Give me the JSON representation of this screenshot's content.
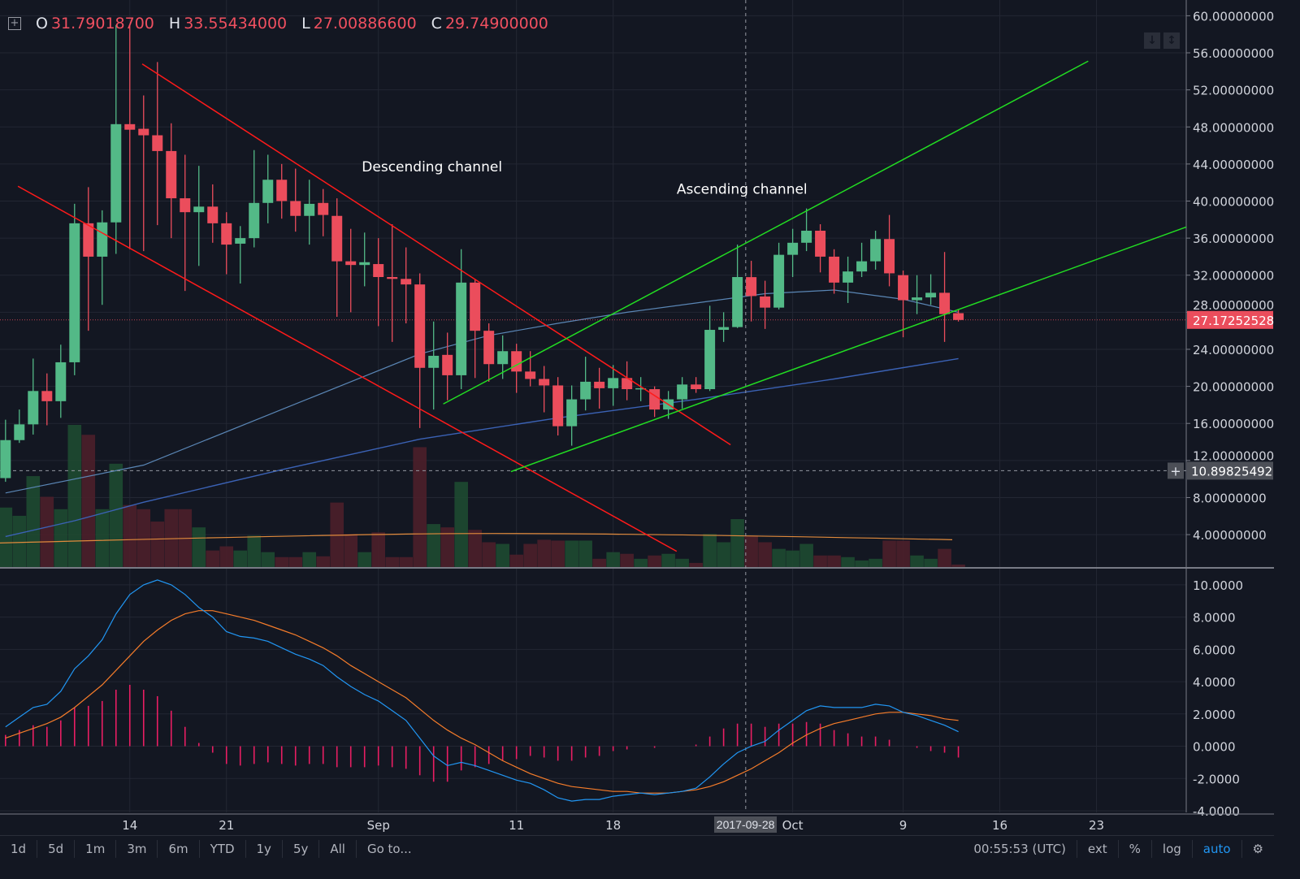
{
  "legend": {
    "o_label": "O",
    "o_value": "31.79018700",
    "h_label": "H",
    "h_value": "33.55434000",
    "l_label": "L",
    "l_value": "27.00886600",
    "c_label": "C",
    "c_value": "29.74900000"
  },
  "colors": {
    "background": "#131722",
    "grid": "#232733",
    "up": "#53b987",
    "down": "#eb4d5c",
    "up_volume": "#1e4a31",
    "down_volume": "#4d1f2a",
    "ma_fast": "#5a86b5",
    "ma_slow": "#3b62b5",
    "volume_ma": "#e08a3c",
    "macd": "#2196f3",
    "signal": "#f57c2a",
    "histogram": "#e91e63",
    "channel_desc": "#ff1a1a",
    "channel_asc": "#22dd22"
  },
  "toolbar": {
    "ranges": [
      "1d",
      "5d",
      "1m",
      "3m",
      "6m",
      "YTD",
      "1y",
      "5y",
      "All",
      "Go to..."
    ],
    "clock": "00:55:53 (UTC)",
    "options": [
      "ext",
      "%",
      "log",
      "auto"
    ],
    "settings_icon": "gear-icon"
  },
  "pane_buttons": {
    "scroll_down": "arrow-down-icon",
    "scale": "arrow-up-down-icon"
  },
  "crosshair": {
    "time_label": "2017-09-28",
    "price_label": "10.89825492"
  },
  "last_price_label": "27.17252528",
  "chart_data": {
    "type": "candlestick",
    "title": "",
    "start_date": "2017-08-05",
    "interval": "1d",
    "price_axis": {
      "ticks": [
        "60.00000000",
        "56.00000000",
        "52.00000000",
        "48.00000000",
        "44.00000000",
        "40.00000000",
        "36.00000000",
        "32.00000000",
        "28.00000000",
        "24.00000000",
        "20.00000000",
        "16.00000000",
        "12.00000000",
        "8.00000000",
        "4.00000000"
      ],
      "range": [
        0.5,
        61.7
      ]
    },
    "macd_axis": {
      "ticks": [
        "10.0000",
        "8.0000",
        "6.0000",
        "4.0000",
        "2.0000",
        "0.0000",
        "-2.0000",
        "-4.0000"
      ],
      "range": [
        -4.1,
        11.0
      ]
    },
    "time_axis": {
      "ticks": [
        {
          "label": "14",
          "day": 9
        },
        {
          "label": "21",
          "day": 16
        },
        {
          "label": "Sep",
          "day": 27
        },
        {
          "label": "11",
          "day": 37
        },
        {
          "label": "18",
          "day": 44
        },
        {
          "label": "Oct",
          "day": 57
        },
        {
          "label": "9",
          "day": 65
        },
        {
          "label": "16",
          "day": 72
        },
        {
          "label": "23",
          "day": 79
        }
      ],
      "range_days": [
        -0.4,
        85.5
      ]
    },
    "ohlc": [
      [
        10.1,
        14.2,
        16.4,
        9.7
      ],
      [
        14.2,
        15.9,
        17.5,
        13.9
      ],
      [
        15.9,
        19.5,
        23.0,
        14.8
      ],
      [
        19.5,
        18.4,
        21.4,
        15.8
      ],
      [
        18.4,
        22.6,
        24.5,
        16.6
      ],
      [
        22.6,
        37.6,
        39.7,
        21.2
      ],
      [
        37.6,
        34.0,
        41.5,
        26.0
      ],
      [
        34.0,
        37.7,
        39.0,
        28.8
      ],
      [
        37.7,
        48.3,
        59.0,
        34.3
      ],
      [
        48.3,
        47.7,
        59.0,
        34.8
      ],
      [
        47.8,
        47.1,
        51.4,
        34.6
      ],
      [
        47.1,
        45.4,
        55.0,
        37.4
      ],
      [
        45.4,
        40.3,
        48.4,
        36.0
      ],
      [
        40.3,
        38.8,
        45.0,
        30.3
      ],
      [
        38.8,
        39.4,
        43.8,
        33.0
      ],
      [
        39.4,
        37.6,
        41.8,
        35.5
      ],
      [
        37.6,
        35.3,
        38.8,
        32.1
      ],
      [
        35.4,
        36.0,
        37.3,
        31.1
      ],
      [
        36.0,
        39.8,
        45.5,
        35.0
      ],
      [
        39.8,
        42.3,
        45.0,
        37.6
      ],
      [
        42.3,
        40.0,
        44.0,
        38.1
      ],
      [
        40.0,
        38.4,
        43.5,
        36.7
      ],
      [
        38.4,
        39.7,
        42.3,
        35.3
      ],
      [
        39.8,
        38.5,
        41.3,
        36.2
      ],
      [
        38.4,
        33.5,
        40.3,
        27.5
      ],
      [
        33.5,
        33.1,
        37.0,
        28.0
      ],
      [
        33.1,
        33.4,
        36.6,
        30.8
      ],
      [
        33.2,
        31.8,
        36.0,
        26.5
      ],
      [
        31.8,
        31.6,
        37.5,
        24.8
      ],
      [
        31.6,
        31.0,
        35.0,
        26.8
      ],
      [
        31.0,
        22.0,
        32.2,
        15.5
      ],
      [
        22.0,
        23.3,
        27.0,
        17.5
      ],
      [
        23.4,
        21.2,
        25.8,
        18.5
      ],
      [
        21.2,
        31.2,
        34.8,
        19.7
      ],
      [
        31.2,
        26.0,
        31.5,
        20.9
      ],
      [
        26.0,
        22.4,
        26.8,
        20.5
      ],
      [
        22.4,
        23.8,
        25.5,
        20.8
      ],
      [
        23.8,
        21.6,
        24.6,
        19.3
      ],
      [
        21.6,
        20.8,
        23.8,
        20.0
      ],
      [
        20.8,
        20.1,
        22.2,
        17.2
      ],
      [
        20.1,
        15.7,
        21.0,
        14.7
      ],
      [
        15.7,
        18.6,
        20.1,
        13.6
      ],
      [
        18.6,
        20.5,
        23.2,
        17.4
      ],
      [
        20.5,
        19.8,
        22.0,
        17.6
      ],
      [
        19.8,
        20.9,
        22.3,
        17.9
      ],
      [
        20.9,
        19.7,
        22.7,
        18.5
      ],
      [
        19.7,
        19.8,
        21.0,
        18.4
      ],
      [
        19.7,
        17.5,
        20.0,
        16.7
      ],
      [
        17.5,
        18.6,
        19.5,
        16.5
      ],
      [
        18.6,
        20.2,
        21.0,
        17.6
      ],
      [
        20.2,
        19.7,
        21.0,
        19.3
      ],
      [
        19.7,
        26.1,
        28.7,
        19.5
      ],
      [
        26.1,
        26.4,
        28.0,
        24.8
      ],
      [
        26.4,
        31.8,
        35.3,
        26.3
      ],
      [
        31.79,
        29.75,
        33.55,
        27.01
      ],
      [
        29.7,
        28.5,
        31.4,
        26.2
      ],
      [
        28.5,
        34.2,
        35.5,
        28.3
      ],
      [
        34.2,
        35.5,
        37.0,
        31.8
      ],
      [
        35.5,
        36.8,
        39.2,
        34.6
      ],
      [
        36.8,
        34.0,
        37.5,
        32.3
      ],
      [
        34.0,
        31.2,
        34.8,
        30.0
      ],
      [
        31.2,
        32.4,
        34.0,
        29.0
      ],
      [
        32.4,
        33.5,
        35.5,
        31.8
      ],
      [
        33.5,
        35.9,
        36.8,
        32.6
      ],
      [
        35.9,
        32.2,
        38.5,
        30.8
      ],
      [
        32.0,
        29.3,
        32.5,
        25.3
      ],
      [
        29.3,
        29.6,
        32.0,
        27.8
      ],
      [
        29.6,
        30.1,
        32.1,
        28.8
      ],
      [
        30.1,
        27.8,
        34.5,
        24.8
      ],
      [
        27.9,
        27.17,
        28.3,
        27.0
      ]
    ],
    "volume_relative": [
      72,
      62,
      110,
      85,
      70,
      172,
      160,
      70,
      125,
      75,
      70,
      55,
      70,
      70,
      48,
      20,
      25,
      20,
      38,
      18,
      12,
      12,
      18,
      13,
      78,
      40,
      18,
      42,
      12,
      12,
      145,
      52,
      48,
      103,
      45,
      30,
      28,
      15,
      28,
      33,
      32,
      32,
      32,
      10,
      18,
      16,
      10,
      14,
      16,
      10,
      5,
      40,
      30,
      58,
      38,
      30,
      22,
      20,
      28,
      14,
      14,
      12,
      8,
      10,
      32,
      32,
      14,
      10,
      22,
      3
    ],
    "volume_ma_relative": 35,
    "ma_fast": [
      [
        0,
        8.5
      ],
      [
        10,
        11.5
      ],
      [
        20,
        17.5
      ],
      [
        25,
        20.5
      ],
      [
        30,
        23.5
      ],
      [
        35,
        25.5
      ],
      [
        40,
        26.8
      ],
      [
        45,
        28.0
      ],
      [
        50,
        29.0
      ],
      [
        55,
        30.0
      ],
      [
        60,
        30.4
      ],
      [
        65,
        29.4
      ],
      [
        69,
        28.0
      ]
    ],
    "ma_slow": [
      [
        0,
        3.8
      ],
      [
        5,
        5.5
      ],
      [
        10,
        7.5
      ],
      [
        20,
        11
      ],
      [
        30,
        14.3
      ],
      [
        40,
        16.6
      ],
      [
        50,
        18.6
      ],
      [
        60,
        20.8
      ],
      [
        69,
        23.0
      ]
    ],
    "macd": [
      1.2,
      1.8,
      2.4,
      2.6,
      3.4,
      4.8,
      5.6,
      6.6,
      8.2,
      9.4,
      10.0,
      10.3,
      10.0,
      9.4,
      8.6,
      8.0,
      7.1,
      6.8,
      6.7,
      6.5,
      6.1,
      5.7,
      5.4,
      5.0,
      4.3,
      3.7,
      3.2,
      2.8,
      2.2,
      1.6,
      0.5,
      -0.6,
      -1.2,
      -1.0,
      -1.2,
      -1.5,
      -1.8,
      -2.1,
      -2.3,
      -2.7,
      -3.2,
      -3.4,
      -3.3,
      -3.3,
      -3.1,
      -3.0,
      -2.9,
      -3.0,
      -2.9,
      -2.8,
      -2.6,
      -1.9,
      -1.1,
      -0.4,
      0.0,
      0.3,
      1.0,
      1.6,
      2.2,
      2.5,
      2.4,
      2.4,
      2.4,
      2.6,
      2.5,
      2.1,
      1.9,
      1.6,
      1.3,
      0.9
    ],
    "signal": [
      0.5,
      0.8,
      1.1,
      1.4,
      1.8,
      2.4,
      3.1,
      3.8,
      4.7,
      5.6,
      6.5,
      7.2,
      7.8,
      8.2,
      8.4,
      8.4,
      8.2,
      8.0,
      7.8,
      7.5,
      7.2,
      6.9,
      6.5,
      6.1,
      5.6,
      5.0,
      4.5,
      4.0,
      3.5,
      3.0,
      2.3,
      1.6,
      1.0,
      0.5,
      0.1,
      -0.4,
      -0.9,
      -1.3,
      -1.7,
      -2.0,
      -2.3,
      -2.5,
      -2.6,
      -2.7,
      -2.8,
      -2.8,
      -2.9,
      -2.9,
      -2.9,
      -2.8,
      -2.7,
      -2.5,
      -2.2,
      -1.8,
      -1.4,
      -0.9,
      -0.4,
      0.2,
      0.7,
      1.1,
      1.4,
      1.6,
      1.8,
      2.0,
      2.1,
      2.1,
      2.0,
      1.9,
      1.7,
      1.6
    ],
    "trendlines": [
      {
        "name": "descending-upper",
        "color": "channel_desc",
        "p1": [
          9.9,
          54.8
        ],
        "p2": [
          52.5,
          13.7
        ]
      },
      {
        "name": "descending-lower",
        "color": "channel_desc",
        "p1": [
          0.9,
          41.6
        ],
        "p2": [
          48.6,
          2.2
        ]
      },
      {
        "name": "ascending-upper",
        "color": "channel_asc",
        "p1": [
          31.7,
          18.1
        ],
        "p2": [
          78.4,
          55.1
        ]
      },
      {
        "name": "ascending-lower",
        "color": "channel_asc",
        "p1": [
          36.6,
          10.8
        ],
        "p2": [
          85.5,
          37.2
        ]
      }
    ],
    "annotations": [
      {
        "text": "Descending channel",
        "day": 25.8,
        "price": 43.2
      },
      {
        "text": "Ascending channel",
        "day": 48.6,
        "price": 40.8
      }
    ],
    "last_price": 27.17252528,
    "crosshair": {
      "day": 53.6,
      "price": 10.89825492
    }
  }
}
